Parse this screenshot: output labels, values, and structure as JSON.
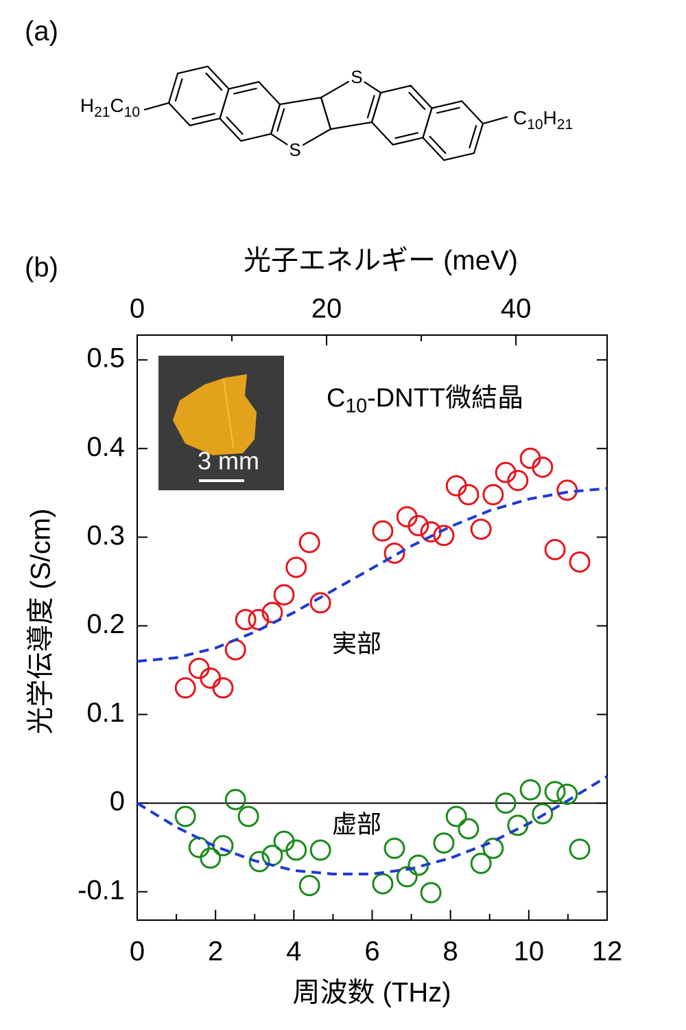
{
  "panel_a": {
    "label": "(a)",
    "left_group": [
      "H",
      "21",
      "C",
      "10"
    ],
    "right_group": [
      "C",
      "10",
      "H",
      "21"
    ],
    "atoms": [
      "S",
      "S"
    ]
  },
  "chart_data": {
    "type": "scatter",
    "panel_label": "(b)",
    "x_label": "周波数 (THz)",
    "x2_label": "光子エネルギー (meV)",
    "y_label": "光学伝導度 (S/cm)",
    "xlim": [
      0,
      12
    ],
    "xticks": [
      0,
      2,
      4,
      6,
      8,
      10,
      12
    ],
    "xminorticks": [
      1,
      3,
      5,
      7,
      9,
      11
    ],
    "x2lim": [
      0,
      49.63
    ],
    "x2ticks": [
      0,
      20,
      40
    ],
    "x2minorticks": [
      10,
      30
    ],
    "ylim": [
      -0.132,
      0.528
    ],
    "yticks": [
      -0.1,
      0,
      0.1,
      0.2,
      0.3,
      0.4,
      0.5
    ],
    "zero_line": true,
    "annotation": [
      "C",
      "10",
      "-DNTT微結晶"
    ],
    "inset": {
      "scale_label": "3 mm"
    },
    "series": [
      {
        "name": "実部",
        "color": "#e8141c",
        "x": [
          1.23,
          1.58,
          1.87,
          2.19,
          2.51,
          2.77,
          3.1,
          3.45,
          3.75,
          4.06,
          4.4,
          4.68,
          6.27,
          6.57,
          6.89,
          7.18,
          7.5,
          7.83,
          8.15,
          8.46,
          8.78,
          9.09,
          9.41,
          9.72,
          10.04,
          10.35,
          10.67,
          10.98,
          11.3
        ],
        "values": [
          0.13,
          0.152,
          0.141,
          0.13,
          0.173,
          0.207,
          0.207,
          0.215,
          0.235,
          0.266,
          0.294,
          0.226,
          0.307,
          0.282,
          0.323,
          0.313,
          0.306,
          0.302,
          0.358,
          0.348,
          0.309,
          0.348,
          0.373,
          0.364,
          0.389,
          0.379,
          0.286,
          0.353,
          0.272
        ]
      },
      {
        "name": "虚部",
        "color": "#1a8a1a",
        "x": [
          1.23,
          1.58,
          1.87,
          2.19,
          2.51,
          2.84,
          3.12,
          3.45,
          3.75,
          4.06,
          4.4,
          4.68,
          6.27,
          6.57,
          6.89,
          7.18,
          7.5,
          7.83,
          8.15,
          8.46,
          8.78,
          9.09,
          9.41,
          9.72,
          10.04,
          10.35,
          10.67,
          10.98,
          11.3
        ],
        "values": [
          -0.015,
          -0.05,
          -0.062,
          -0.048,
          0.004,
          -0.015,
          -0.066,
          -0.059,
          -0.043,
          -0.053,
          -0.093,
          -0.053,
          -0.091,
          -0.051,
          -0.083,
          -0.07,
          -0.101,
          -0.045,
          -0.015,
          -0.029,
          -0.068,
          -0.051,
          0.0,
          -0.025,
          0.015,
          -0.012,
          0.013,
          0.01,
          -0.052
        ]
      }
    ],
    "fits": [
      {
        "color": "#1e3ad0",
        "x": [
          0,
          1,
          2,
          3,
          4,
          5,
          6,
          7,
          8,
          9,
          10,
          11,
          12
        ],
        "values": [
          0.16,
          0.164,
          0.175,
          0.193,
          0.215,
          0.24,
          0.265,
          0.29,
          0.312,
          0.33,
          0.343,
          0.351,
          0.355
        ]
      },
      {
        "color": "#1e3ad0",
        "x": [
          0,
          1,
          2,
          3,
          4,
          5,
          6,
          7,
          8,
          9,
          10,
          11,
          12
        ],
        "values": [
          0,
          -0.027,
          -0.049,
          -0.065,
          -0.076,
          -0.08,
          -0.08,
          -0.074,
          -0.062,
          -0.045,
          -0.023,
          0.003,
          0.03
        ]
      }
    ]
  }
}
